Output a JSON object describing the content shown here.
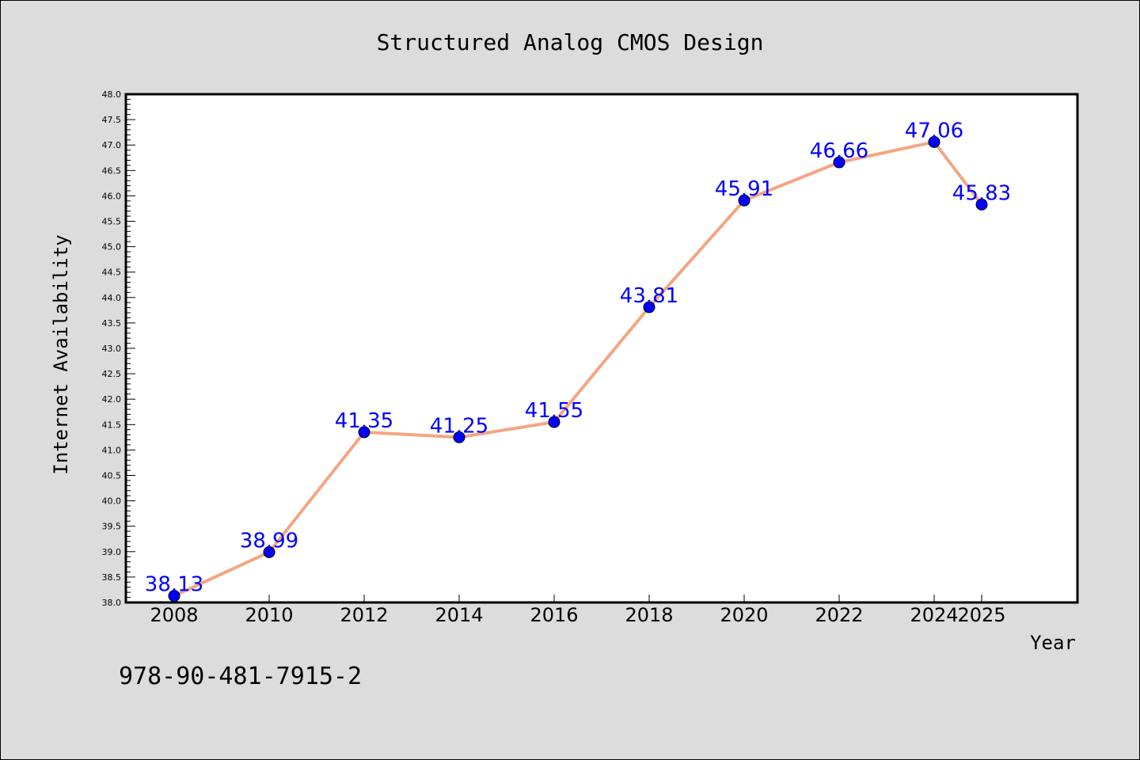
{
  "chart_data": {
    "type": "line",
    "title": "Structured Analog CMOS Design",
    "xlabel": "Year",
    "ylabel": "Internet Availability",
    "x": [
      "2008",
      "2010",
      "2012",
      "2014",
      "2016",
      "2018",
      "2020",
      "2022",
      "2024",
      "2025"
    ],
    "values": [
      38.13,
      38.99,
      41.35,
      41.25,
      41.55,
      43.81,
      45.91,
      46.66,
      47.06,
      45.83
    ],
    "data_labels": [
      "38.13",
      "38.99",
      "41.35",
      "41.25",
      "41.55",
      "43.81",
      "45.91",
      "46.66",
      "47.06",
      "45.83"
    ],
    "ylim": [
      38.0,
      48.0
    ],
    "y_ticks": [
      "38.0",
      "38.5",
      "39.0",
      "39.5",
      "40.0",
      "40.5",
      "41.0",
      "41.5",
      "42.0",
      "42.5",
      "43.0",
      "43.5",
      "44.0",
      "44.5",
      "45.0",
      "45.5",
      "46.0",
      "46.5",
      "47.0",
      "47.5",
      "48.0"
    ],
    "grid": false,
    "legend": "none",
    "line_color": "#f4a582",
    "marker_color": "#0000ff",
    "label_color": "#0000ff",
    "background_color": "#dcdcdc",
    "plot_background_color": "#ffffff"
  },
  "footer": {
    "isbn": "978-90-481-7915-2"
  }
}
